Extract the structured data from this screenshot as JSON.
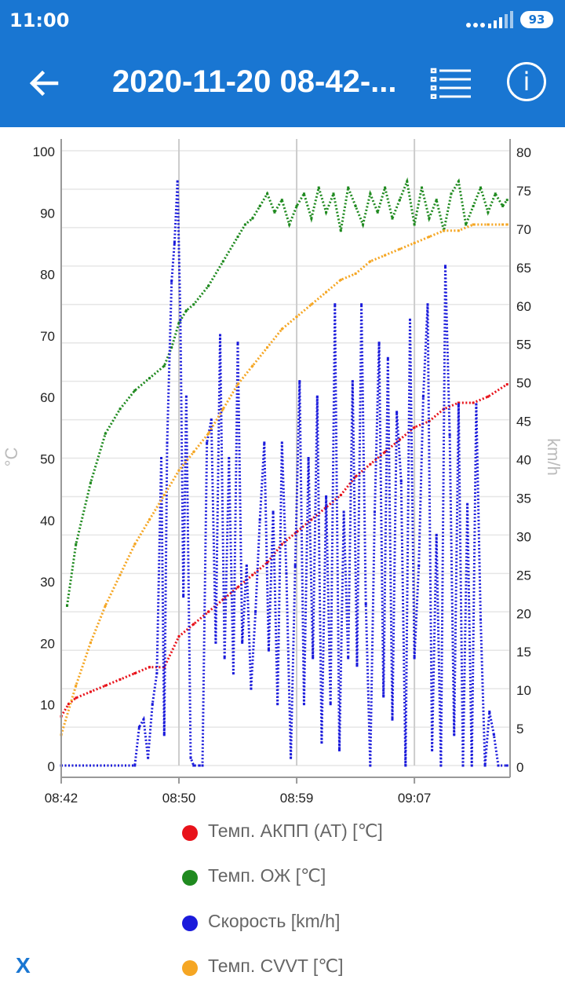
{
  "status_bar": {
    "time": "11:00",
    "battery": "93"
  },
  "app_bar": {
    "title": "2020-11-20 08-42-..."
  },
  "icons": {
    "back": "arrow-left-icon",
    "list": "list-icon",
    "info": "info-icon"
  },
  "close_label": "X",
  "chart_data": {
    "type": "scatter",
    "left_axis": {
      "label": "°C",
      "min": 0,
      "max": 100,
      "ticks": [
        "0",
        "10",
        "20",
        "30",
        "40",
        "50",
        "60",
        "70",
        "80",
        "90",
        "100"
      ]
    },
    "right_axis": {
      "label": "km/h",
      "min": 0,
      "max": 80,
      "ticks": [
        "0",
        "5",
        "10",
        "15",
        "20",
        "25",
        "30",
        "35",
        "40",
        "45",
        "50",
        "55",
        "60",
        "65",
        "70",
        "75",
        "80"
      ]
    },
    "x_axis": {
      "min_minutes": 0,
      "max_minutes": 30.5,
      "ticks": [
        {
          "minute": 0,
          "label": "08:42"
        },
        {
          "minute": 8,
          "label": "08:50"
        },
        {
          "minute": 16,
          "label": "08:59"
        },
        {
          "minute": 24,
          "label": "09:07"
        }
      ]
    },
    "grid": true,
    "legend_position": "bottom",
    "series": [
      {
        "name": "Темп. АКПП (AT) [℃]",
        "color": "#e8121a",
        "axis": "left",
        "x": [
          0,
          0.5,
          1,
          2,
          3,
          4,
          5,
          6,
          7,
          8,
          9,
          10,
          11,
          12,
          13,
          14,
          15,
          16,
          17,
          18,
          19,
          20,
          21,
          22,
          23,
          24,
          25,
          26,
          27,
          28,
          29,
          30.3
        ],
        "y": [
          8,
          10,
          11,
          12,
          13,
          14,
          15,
          16,
          16,
          21,
          23,
          25,
          27,
          29,
          31,
          33,
          36,
          38,
          40,
          42,
          44,
          47,
          49,
          51,
          53,
          55,
          56,
          58,
          59,
          59,
          60,
          62
        ]
      },
      {
        "name": "Темп. ОЖ [℃]",
        "color": "#1f8a1f",
        "axis": "left",
        "x": [
          0.4,
          1,
          2,
          3,
          4,
          5,
          6,
          7,
          7.5,
          8,
          8.5,
          9,
          10,
          11,
          12,
          12.5,
          13,
          13.5,
          14,
          14.5,
          15,
          15.5,
          16,
          16.5,
          17,
          17.5,
          18,
          18.5,
          19,
          19.5,
          20,
          20.5,
          21,
          21.5,
          22,
          22.5,
          23,
          23.5,
          24,
          24.5,
          25,
          25.5,
          26,
          26.5,
          27,
          27.5,
          28,
          28.5,
          29,
          29.5,
          30,
          30.3
        ],
        "y": [
          26,
          36,
          46,
          54,
          58,
          61,
          63,
          65,
          68,
          72,
          74,
          75,
          78,
          82,
          86,
          88,
          89,
          91,
          93,
          90,
          92,
          88,
          91,
          93,
          89,
          94,
          90,
          93,
          87,
          94,
          91,
          88,
          93,
          90,
          94,
          89,
          92,
          95,
          88,
          94,
          89,
          92,
          87,
          93,
          95,
          88,
          91,
          94,
          90,
          93,
          91,
          92
        ]
      },
      {
        "name": "Скорость [km/h]",
        "color": "#1a1adb",
        "axis": "right",
        "x": [
          0,
          5,
          5.3,
          5.6,
          5.9,
          6.2,
          6.5,
          6.8,
          7.0,
          7.2,
          7.5,
          7.7,
          7.9,
          8.1,
          8.3,
          8.5,
          8.8,
          9.0,
          9.4,
          9.6,
          9.9,
          10.2,
          10.5,
          10.8,
          11.1,
          11.4,
          11.7,
          12.0,
          12.3,
          12.6,
          12.9,
          13.2,
          13.5,
          13.8,
          14.1,
          14.4,
          14.7,
          15.0,
          15.3,
          15.6,
          15.9,
          16.2,
          16.5,
          16.8,
          17.1,
          17.4,
          17.7,
          18.0,
          18.3,
          18.6,
          18.9,
          19.2,
          19.5,
          19.8,
          20.1,
          20.4,
          20.7,
          21.0,
          21.3,
          21.6,
          21.9,
          22.2,
          22.5,
          22.8,
          23.1,
          23.4,
          23.7,
          24.0,
          24.3,
          24.6,
          24.9,
          25.2,
          25.5,
          25.8,
          26.1,
          26.4,
          26.7,
          27.0,
          27.3,
          27.6,
          27.9,
          28.2,
          28.5,
          28.8,
          29.1,
          29.4,
          29.7,
          30.3
        ],
        "y": [
          0,
          0,
          5,
          6,
          1,
          8,
          12,
          40,
          4,
          42,
          63,
          68,
          76,
          58,
          22,
          48,
          1,
          0,
          0,
          0,
          42,
          45,
          16,
          56,
          14,
          40,
          12,
          55,
          16,
          26,
          10,
          20,
          32,
          42,
          15,
          33,
          8,
          42,
          25,
          1,
          26,
          50,
          8,
          40,
          14,
          48,
          3,
          35,
          8,
          60,
          2,
          33,
          14,
          50,
          13,
          60,
          21,
          0,
          33,
          55,
          9,
          53,
          6,
          46,
          37,
          0,
          58,
          14,
          26,
          48,
          60,
          2,
          30,
          0,
          65,
          43,
          4,
          47,
          0,
          34,
          0,
          47,
          19,
          0,
          7,
          4,
          0,
          0
        ]
      },
      {
        "name": "Темп. CVVT [℃]",
        "color": "#f5a623",
        "axis": "left",
        "x": [
          0,
          1,
          2,
          3,
          4,
          5,
          6,
          7,
          8,
          9,
          10,
          11,
          12,
          13,
          14,
          15,
          16,
          17,
          18,
          19,
          20,
          21,
          22,
          23,
          24,
          25,
          26,
          27,
          28,
          29,
          30,
          30.3
        ],
        "y": [
          5,
          13,
          20,
          26,
          31,
          36,
          40,
          44,
          48,
          51,
          54,
          58,
          62,
          65,
          68,
          71,
          73,
          75,
          77,
          79,
          80,
          82,
          83,
          84,
          85,
          86,
          87,
          87,
          88,
          88,
          88,
          88
        ]
      }
    ]
  }
}
